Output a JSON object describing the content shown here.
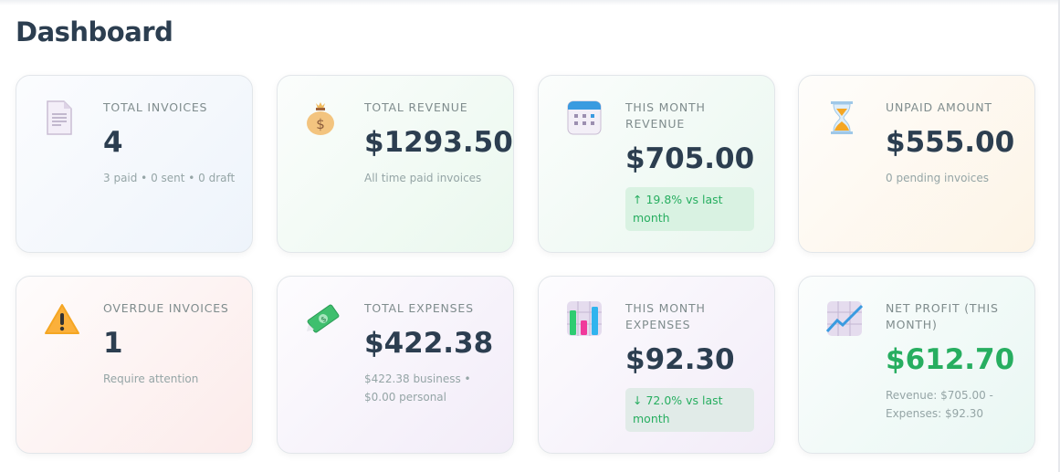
{
  "header": {
    "title": "Dashboard"
  },
  "colors": {
    "text": "#2c3e50",
    "muted": "#95a5a6",
    "positive": "#27ae60"
  },
  "cards": [
    {
      "icon": "document-icon",
      "title": "TOTAL INVOICES",
      "value": "4",
      "sub": "3 paid • 0 sent • 0 draft"
    },
    {
      "icon": "money-bag-icon",
      "title": "TOTAL REVENUE",
      "value": "$1293.50",
      "sub": "All time paid invoices"
    },
    {
      "icon": "calendar-icon",
      "title": "THIS MONTH REVENUE",
      "value": "$705.00",
      "badge": "↑ 19.8% vs last month"
    },
    {
      "icon": "hourglass-icon",
      "title": "UNPAID AMOUNT",
      "value": "$555.00",
      "sub": "0 pending invoices"
    },
    {
      "icon": "warning-icon",
      "title": "OVERDUE INVOICES",
      "value": "1",
      "sub": "Require attention"
    },
    {
      "icon": "money-wings-icon",
      "title": "TOTAL EXPENSES",
      "value": "$422.38",
      "sub": "$422.38 business • $0.00 personal"
    },
    {
      "icon": "bar-chart-icon",
      "title": "THIS MONTH EXPENSES",
      "value": "$92.30",
      "badge": "↓ 72.0% vs last month"
    },
    {
      "icon": "chart-increasing-icon",
      "title": "NET PROFIT (THIS MONTH)",
      "value": "$612.70",
      "sub": "Revenue: $705.00 - Expenses: $92.30"
    }
  ]
}
